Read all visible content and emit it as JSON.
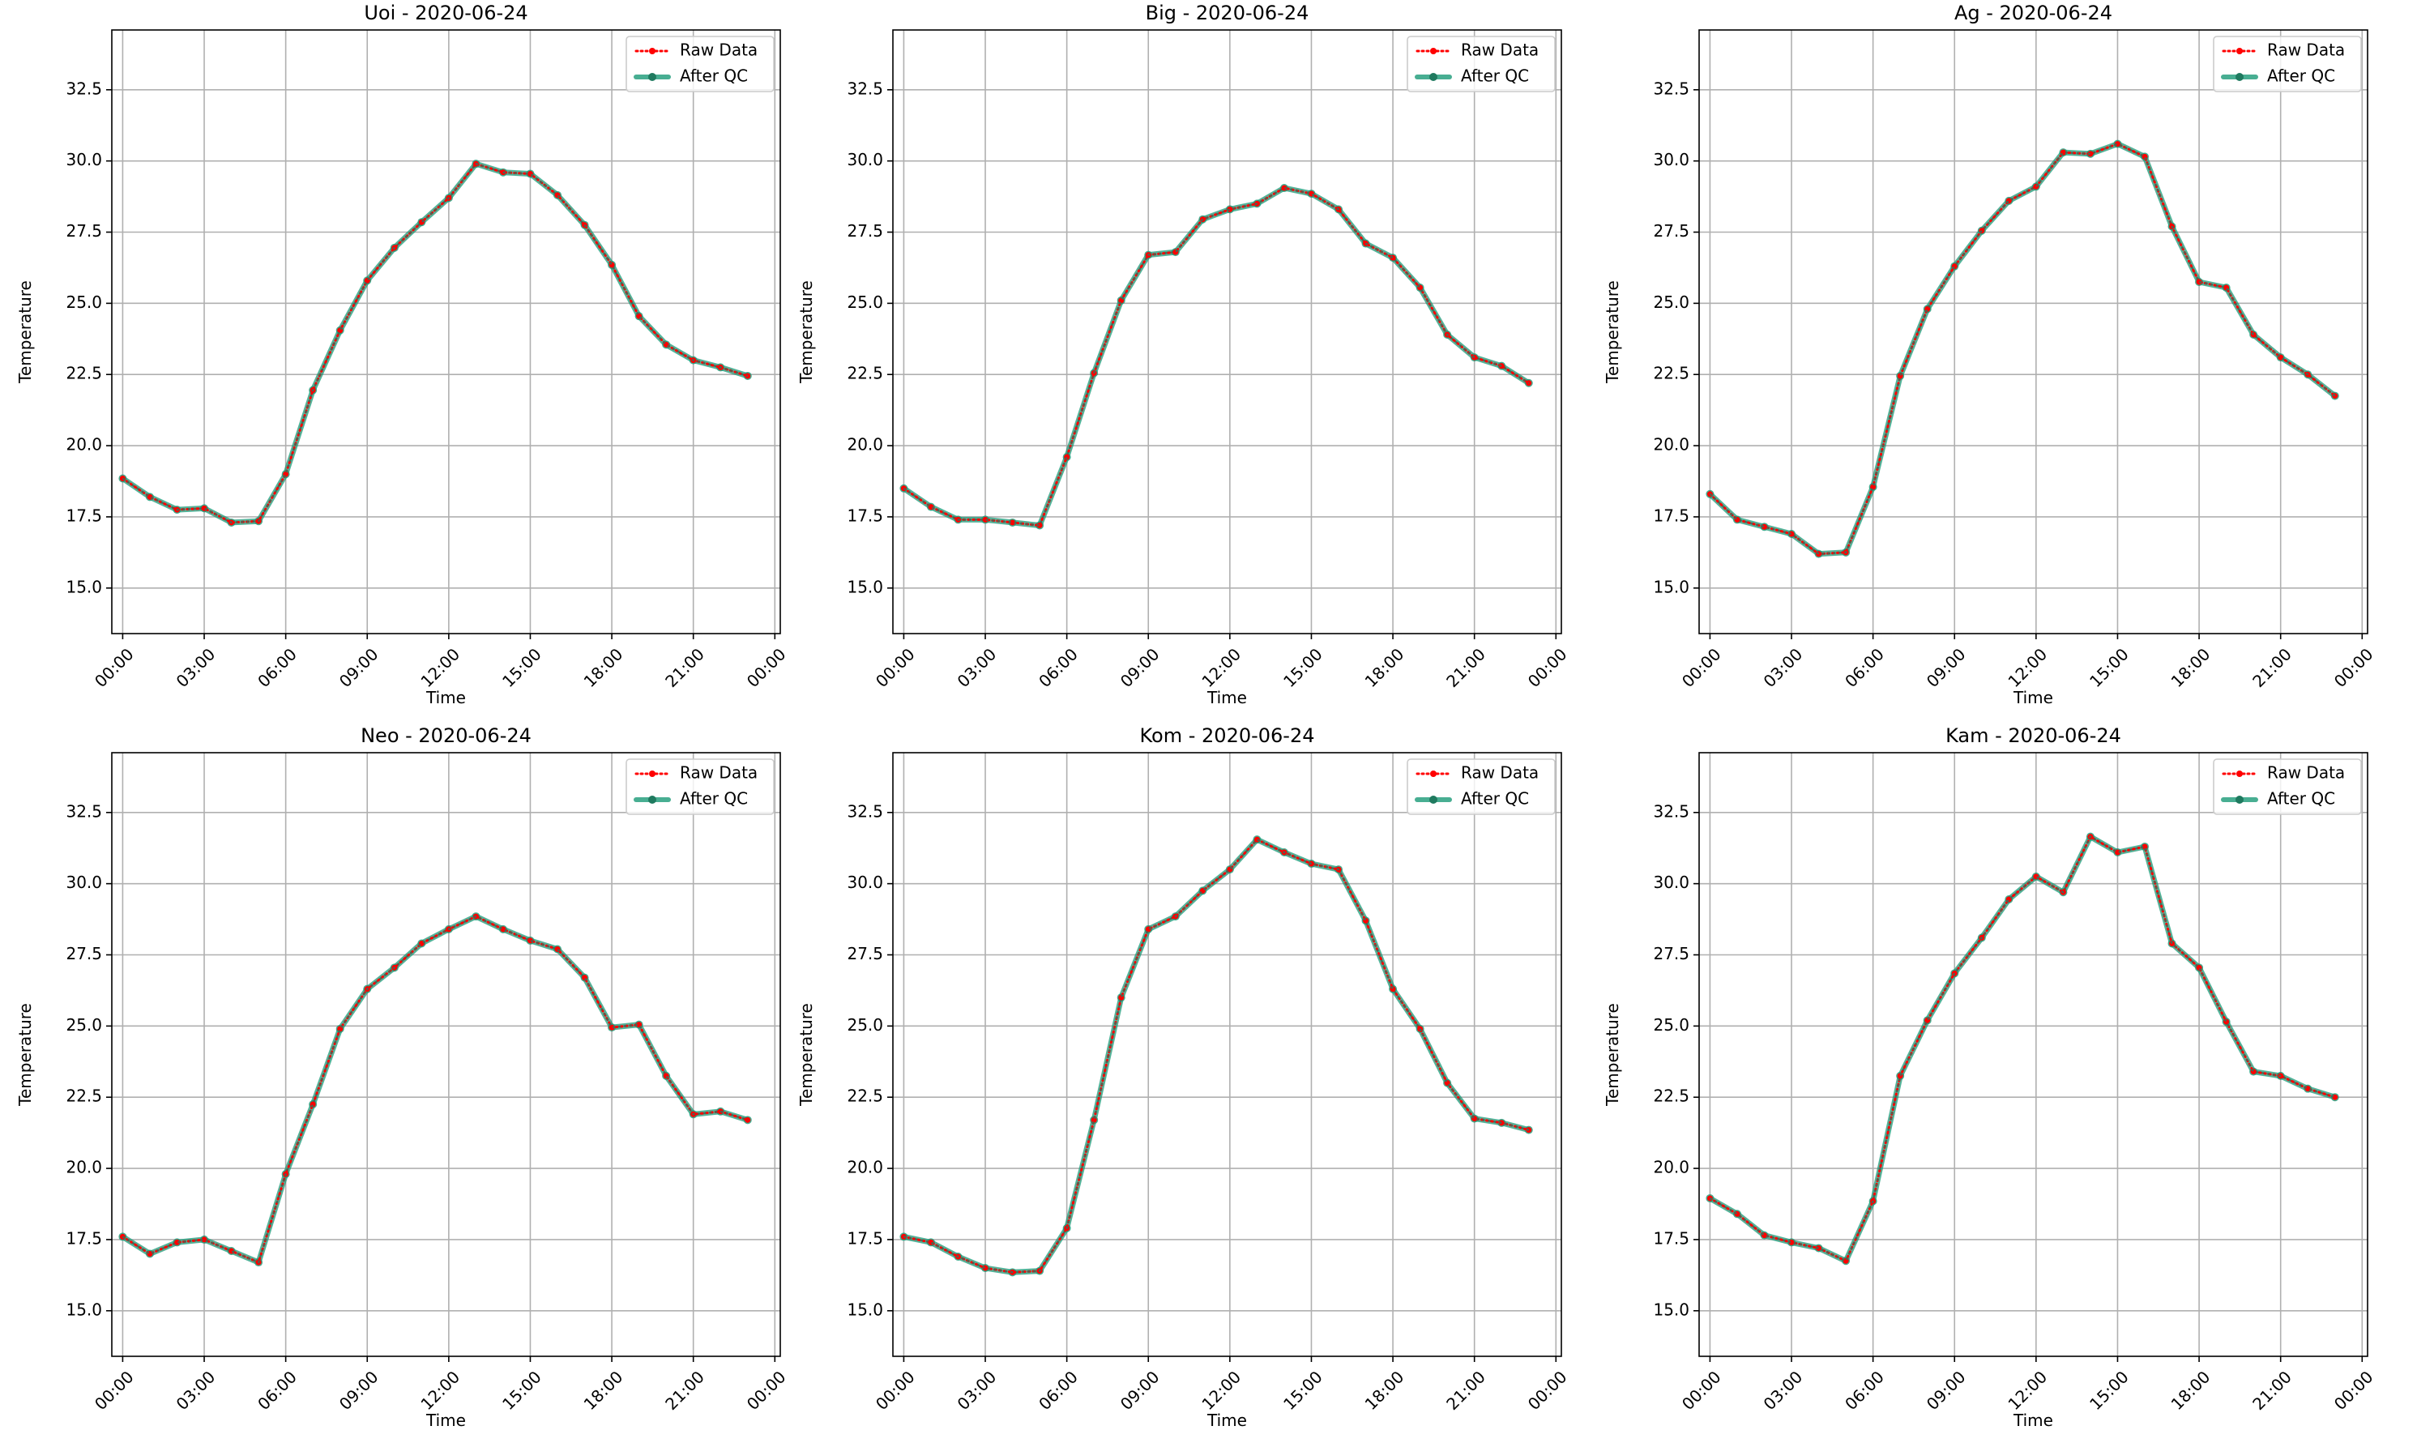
{
  "chart_data": [
    {
      "type": "line",
      "title": "Uoi - 2020-06-24",
      "xlabel": "Time",
      "ylabel": "Temperature",
      "x_ticks": [
        "00:00",
        "03:00",
        "06:00",
        "09:00",
        "12:00",
        "15:00",
        "18:00",
        "21:00",
        "00:00"
      ],
      "y_ticks": [
        "15.0",
        "17.5",
        "20.0",
        "22.5",
        "25.0",
        "27.5",
        "30.0",
        "32.5"
      ],
      "xlim_hours": [
        -0.4,
        24.2
      ],
      "ylim": [
        13.4,
        34.6
      ],
      "grid": true,
      "legend_position": "upper right",
      "x_hours": [
        0,
        1,
        2,
        3,
        4,
        5,
        6,
        7,
        8,
        9,
        10,
        11,
        12,
        13,
        14,
        15,
        16,
        17,
        18,
        19,
        20,
        21,
        22,
        23
      ],
      "series": [
        {
          "name": "Raw Data",
          "style": "dotted",
          "color": "#ff0000",
          "values": [
            18.85,
            18.2,
            17.75,
            17.8,
            17.3,
            17.35,
            19.0,
            21.95,
            24.05,
            25.8,
            26.95,
            27.85,
            28.7,
            29.9,
            29.6,
            29.55,
            28.8,
            27.75,
            26.35,
            24.55,
            23.55,
            23.0,
            22.75,
            22.45
          ]
        },
        {
          "name": "After QC",
          "style": "solid",
          "color": "#1a9a77",
          "values": [
            18.85,
            18.2,
            17.75,
            17.8,
            17.3,
            17.35,
            19.0,
            21.95,
            24.05,
            25.8,
            26.95,
            27.85,
            28.7,
            29.9,
            29.6,
            29.55,
            28.8,
            27.75,
            26.35,
            24.55,
            23.55,
            23.0,
            22.75,
            22.45
          ]
        }
      ]
    },
    {
      "type": "line",
      "title": "Big - 2020-06-24",
      "xlabel": "Time",
      "ylabel": "Temperature",
      "x_ticks": [
        "00:00",
        "03:00",
        "06:00",
        "09:00",
        "12:00",
        "15:00",
        "18:00",
        "21:00",
        "00:00"
      ],
      "y_ticks": [
        "15.0",
        "17.5",
        "20.0",
        "22.5",
        "25.0",
        "27.5",
        "30.0",
        "32.5"
      ],
      "xlim_hours": [
        -0.4,
        24.2
      ],
      "ylim": [
        13.4,
        34.6
      ],
      "grid": true,
      "legend_position": "upper right",
      "x_hours": [
        0,
        1,
        2,
        3,
        4,
        5,
        6,
        7,
        8,
        9,
        10,
        11,
        12,
        13,
        14,
        15,
        16,
        17,
        18,
        19,
        20,
        21,
        22,
        23
      ],
      "series": [
        {
          "name": "Raw Data",
          "style": "dotted",
          "color": "#ff0000",
          "values": [
            18.5,
            17.85,
            17.4,
            17.4,
            17.3,
            17.2,
            19.6,
            22.55,
            25.1,
            26.7,
            26.8,
            27.95,
            28.3,
            28.5,
            29.05,
            28.85,
            28.3,
            27.1,
            26.6,
            25.55,
            23.9,
            23.1,
            22.8,
            22.2
          ]
        },
        {
          "name": "After QC",
          "style": "solid",
          "color": "#1a9a77",
          "values": [
            18.5,
            17.85,
            17.4,
            17.4,
            17.3,
            17.2,
            19.6,
            22.55,
            25.1,
            26.7,
            26.8,
            27.95,
            28.3,
            28.5,
            29.05,
            28.85,
            28.3,
            27.1,
            26.6,
            25.55,
            23.9,
            23.1,
            22.8,
            22.2
          ]
        }
      ]
    },
    {
      "type": "line",
      "title": "Ag - 2020-06-24",
      "xlabel": "Time",
      "ylabel": "Temperature",
      "x_ticks": [
        "00:00",
        "03:00",
        "06:00",
        "09:00",
        "12:00",
        "15:00",
        "18:00",
        "21:00",
        "00:00"
      ],
      "y_ticks": [
        "15.0",
        "17.5",
        "20.0",
        "22.5",
        "25.0",
        "27.5",
        "30.0",
        "32.5"
      ],
      "xlim_hours": [
        -0.4,
        24.2
      ],
      "ylim": [
        13.4,
        34.6
      ],
      "grid": true,
      "legend_position": "upper right",
      "x_hours": [
        0,
        1,
        2,
        3,
        4,
        5,
        6,
        7,
        8,
        9,
        10,
        11,
        12,
        13,
        14,
        15,
        16,
        17,
        18,
        19,
        20,
        21,
        22,
        23
      ],
      "series": [
        {
          "name": "Raw Data",
          "style": "dotted",
          "color": "#ff0000",
          "values": [
            18.3,
            17.4,
            17.15,
            16.9,
            16.2,
            16.25,
            18.55,
            22.45,
            24.8,
            26.3,
            27.55,
            28.6,
            29.1,
            30.3,
            30.25,
            30.6,
            30.15,
            27.7,
            25.75,
            25.55,
            23.9,
            23.1,
            22.5,
            21.75
          ]
        },
        {
          "name": "After QC",
          "style": "solid",
          "color": "#1a9a77",
          "values": [
            18.3,
            17.4,
            17.15,
            16.9,
            16.2,
            16.25,
            18.55,
            22.45,
            24.8,
            26.3,
            27.55,
            28.6,
            29.1,
            30.3,
            30.25,
            30.6,
            30.15,
            27.7,
            25.75,
            25.55,
            23.9,
            23.1,
            22.5,
            21.75
          ]
        }
      ]
    },
    {
      "type": "line",
      "title": "Neo - 2020-06-24",
      "xlabel": "Time",
      "ylabel": "Temperature",
      "x_ticks": [
        "00:00",
        "03:00",
        "06:00",
        "09:00",
        "12:00",
        "15:00",
        "18:00",
        "21:00",
        "00:00"
      ],
      "y_ticks": [
        "15.0",
        "17.5",
        "20.0",
        "22.5",
        "25.0",
        "27.5",
        "30.0",
        "32.5"
      ],
      "xlim_hours": [
        -0.4,
        24.2
      ],
      "ylim": [
        13.4,
        34.6
      ],
      "grid": true,
      "legend_position": "upper right",
      "x_hours": [
        0,
        1,
        2,
        3,
        4,
        5,
        6,
        7,
        8,
        9,
        10,
        11,
        12,
        13,
        14,
        15,
        16,
        17,
        18,
        19,
        20,
        21,
        22,
        23
      ],
      "series": [
        {
          "name": "Raw Data",
          "style": "dotted",
          "color": "#ff0000",
          "values": [
            17.6,
            17.0,
            17.4,
            17.5,
            17.1,
            16.7,
            19.8,
            22.25,
            24.9,
            26.3,
            27.05,
            27.9,
            28.4,
            28.85,
            28.4,
            28.0,
            27.7,
            26.7,
            24.95,
            25.05,
            23.25,
            21.9,
            22.0,
            21.7
          ]
        },
        {
          "name": "After QC",
          "style": "solid",
          "color": "#1a9a77",
          "values": [
            17.6,
            17.0,
            17.4,
            17.5,
            17.1,
            16.7,
            19.8,
            22.25,
            24.9,
            26.3,
            27.05,
            27.9,
            28.4,
            28.85,
            28.4,
            28.0,
            27.7,
            26.7,
            24.95,
            25.05,
            23.25,
            21.9,
            22.0,
            21.7
          ]
        }
      ]
    },
    {
      "type": "line",
      "title": "Kom - 2020-06-24",
      "xlabel": "Time",
      "ylabel": "Temperature",
      "x_ticks": [
        "00:00",
        "03:00",
        "06:00",
        "09:00",
        "12:00",
        "15:00",
        "18:00",
        "21:00",
        "00:00"
      ],
      "y_ticks": [
        "15.0",
        "17.5",
        "20.0",
        "22.5",
        "25.0",
        "27.5",
        "30.0",
        "32.5"
      ],
      "xlim_hours": [
        -0.4,
        24.2
      ],
      "ylim": [
        13.4,
        34.6
      ],
      "grid": true,
      "legend_position": "upper right",
      "x_hours": [
        0,
        1,
        2,
        3,
        4,
        5,
        6,
        7,
        8,
        9,
        10,
        11,
        12,
        13,
        14,
        15,
        16,
        17,
        18,
        19,
        20,
        21,
        22,
        23
      ],
      "series": [
        {
          "name": "Raw Data",
          "style": "dotted",
          "color": "#ff0000",
          "values": [
            17.6,
            17.4,
            16.9,
            16.5,
            16.35,
            16.4,
            17.9,
            21.7,
            26.0,
            28.4,
            28.85,
            29.75,
            30.5,
            31.55,
            31.1,
            30.7,
            30.5,
            28.7,
            26.3,
            24.9,
            23.0,
            21.75,
            21.6,
            21.35
          ]
        },
        {
          "name": "After QC",
          "style": "solid",
          "color": "#1a9a77",
          "values": [
            17.6,
            17.4,
            16.9,
            16.5,
            16.35,
            16.4,
            17.9,
            21.7,
            26.0,
            28.4,
            28.85,
            29.75,
            30.5,
            31.55,
            31.1,
            30.7,
            30.5,
            28.7,
            26.3,
            24.9,
            23.0,
            21.75,
            21.6,
            21.35
          ]
        }
      ]
    },
    {
      "type": "line",
      "title": "Kam - 2020-06-24",
      "xlabel": "Time",
      "ylabel": "Temperature",
      "x_ticks": [
        "00:00",
        "03:00",
        "06:00",
        "09:00",
        "12:00",
        "15:00",
        "18:00",
        "21:00",
        "00:00"
      ],
      "y_ticks": [
        "15.0",
        "17.5",
        "20.0",
        "22.5",
        "25.0",
        "27.5",
        "30.0",
        "32.5"
      ],
      "xlim_hours": [
        -0.4,
        24.2
      ],
      "ylim": [
        13.4,
        34.6
      ],
      "grid": true,
      "legend_position": "upper right",
      "x_hours": [
        0,
        1,
        2,
        3,
        4,
        5,
        6,
        7,
        8,
        9,
        10,
        11,
        12,
        13,
        14,
        15,
        16,
        17,
        18,
        19,
        20,
        21,
        22,
        23
      ],
      "series": [
        {
          "name": "Raw Data",
          "style": "dotted",
          "color": "#ff0000",
          "values": [
            18.95,
            18.4,
            17.65,
            17.4,
            17.2,
            16.75,
            18.85,
            23.25,
            25.2,
            26.85,
            28.1,
            29.45,
            30.25,
            29.7,
            31.65,
            31.1,
            31.3,
            27.9,
            27.05,
            25.15,
            23.4,
            23.25,
            22.8,
            22.5
          ]
        },
        {
          "name": "After QC",
          "style": "solid",
          "color": "#1a9a77",
          "values": [
            18.95,
            18.4,
            17.65,
            17.4,
            17.2,
            16.75,
            18.85,
            23.25,
            25.2,
            26.85,
            28.1,
            29.45,
            30.25,
            29.7,
            31.65,
            31.1,
            31.3,
            27.9,
            27.05,
            25.15,
            23.4,
            23.25,
            22.8,
            22.5
          ]
        }
      ]
    }
  ]
}
